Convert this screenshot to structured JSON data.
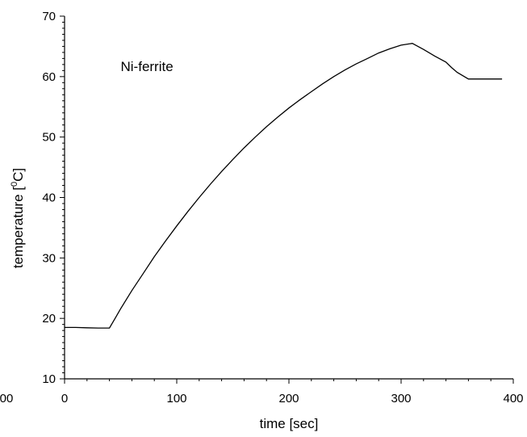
{
  "chart_data": {
    "type": "line",
    "title": "",
    "xlabel": "time [sec]",
    "ylabel_main": "temperature [",
    "ylabel_sup": "0",
    "ylabel_end": "C]",
    "xlim": [
      0,
      400
    ],
    "ylim": [
      10,
      70
    ],
    "x_ticks": [
      0,
      100,
      200,
      300,
      400
    ],
    "y_ticks": [
      10,
      20,
      30,
      40,
      50,
      60,
      70
    ],
    "x_tick_labels": [
      "0",
      "100",
      "200",
      "300",
      "400"
    ],
    "y_tick_labels": [
      "10",
      "20",
      "30",
      "40",
      "50",
      "60",
      "70"
    ],
    "clipped_left_tick_label": "00",
    "grid": false,
    "annotations": [
      {
        "text": "Ni-ferrite",
        "x": 50,
        "y": 60.9
      }
    ],
    "series": [
      {
        "x": [
          0,
          10,
          20,
          30,
          40,
          45,
          50,
          60,
          70,
          80,
          90,
          100,
          110,
          120,
          130,
          140,
          150,
          160,
          170,
          180,
          190,
          200,
          210,
          220,
          230,
          240,
          250,
          260,
          270,
          280,
          290,
          300,
          310,
          320,
          330,
          340,
          345,
          350,
          360,
          370,
          380,
          390
        ],
        "y": [
          18.5,
          18.5,
          18.45,
          18.4,
          18.4,
          20.0,
          21.6,
          24.6,
          27.4,
          30.2,
          32.8,
          35.3,
          37.7,
          40.0,
          42.2,
          44.3,
          46.3,
          48.2,
          50.0,
          51.7,
          53.3,
          54.8,
          56.2,
          57.5,
          58.8,
          60.0,
          61.1,
          62.1,
          63.0,
          63.9,
          64.6,
          65.2,
          65.5,
          64.5,
          63.4,
          62.4,
          61.5,
          60.7,
          59.6,
          59.6,
          59.6,
          59.6
        ]
      }
    ]
  }
}
